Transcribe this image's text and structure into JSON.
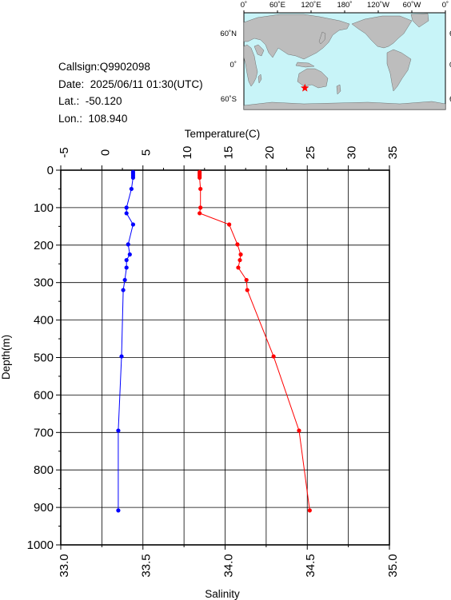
{
  "info": {
    "callsign": "Callsign:Q9902098",
    "date": "Date:  2025/06/11 01:30(UTC)",
    "lat": "Lat.:  -50.120",
    "lon": "Lon.:  108.940"
  },
  "map": {
    "top_labels": [
      "0˚",
      "60˚E",
      "120˚E",
      "180˚",
      "120˚W",
      "60˚W",
      "0˚"
    ],
    "side_labels": [
      "60˚N",
      "0˚",
      "60˚S"
    ],
    "marker": {
      "lat": -50.12,
      "lon": 108.94
    },
    "colors": {
      "ocean": "#c8f4f8",
      "land": "#bdbdbd",
      "marker": "#ff0000"
    }
  },
  "chart_data": {
    "type": "line",
    "title": "",
    "xlabel_top": "Temperature(C)",
    "xlabel_bottom": "Salinity",
    "ylabel": "Depth(m)",
    "temperature_ticks": [
      "-5",
      "0",
      "5",
      "10",
      "15",
      "20",
      "25",
      "30",
      "35"
    ],
    "salinity_ticks": [
      "33.0",
      "33.5",
      "34.0",
      "34.5",
      "35.0"
    ],
    "depth_ticks": [
      "0",
      "100",
      "200",
      "300",
      "400",
      "500",
      "600",
      "700",
      "800",
      "900",
      "1000"
    ],
    "xlim_temperature": [
      -5,
      35
    ],
    "xlim_salinity": [
      33.0,
      35.0
    ],
    "ylim_depth": [
      0,
      1000
    ],
    "grid": true,
    "series": [
      {
        "name": "Temperature",
        "color": "#ff0000",
        "depth": [
          5,
          10,
          15,
          20,
          50,
          100,
          115,
          145,
          198,
          225,
          240,
          260,
          293,
          320,
          497,
          695,
          908
        ],
        "values": [
          11.9,
          11.9,
          11.9,
          11.9,
          12.0,
          12.0,
          11.9,
          15.5,
          16.5,
          16.9,
          16.8,
          16.6,
          17.6,
          17.7,
          20.9,
          24.0,
          25.3
        ]
      },
      {
        "name": "Salinity",
        "color": "#0000ff",
        "depth": [
          5,
          10,
          15,
          20,
          50,
          100,
          115,
          145,
          198,
          225,
          240,
          260,
          293,
          320,
          497,
          695,
          908
        ],
        "values": [
          33.44,
          33.44,
          33.44,
          33.44,
          33.43,
          33.4,
          33.4,
          33.44,
          33.41,
          33.42,
          33.4,
          33.4,
          33.39,
          33.38,
          33.37,
          33.35,
          33.35
        ]
      }
    ]
  }
}
